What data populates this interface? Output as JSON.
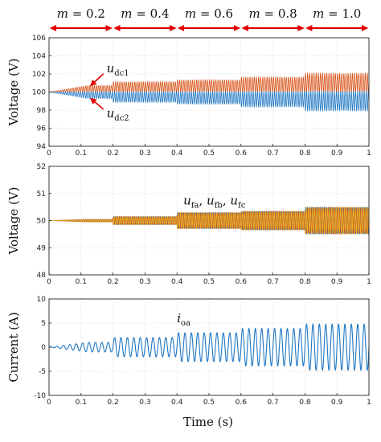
{
  "colors": {
    "blue": "#1f77c4",
    "orange": "#d9541a",
    "yellow": "#f0b21a",
    "red_arrow": "#e00000",
    "axis": "#222222",
    "grid": "#d4d4d4"
  },
  "modulation": {
    "segments": [
      {
        "var": "m",
        "eq": " = ",
        "value": "0.2",
        "t_start": 0.0,
        "t_end": 0.2
      },
      {
        "var": "m",
        "eq": " = ",
        "value": "0.4",
        "t_start": 0.2,
        "t_end": 0.4
      },
      {
        "var": "m",
        "eq": " = ",
        "value": "0.6",
        "t_start": 0.4,
        "t_end": 0.6
      },
      {
        "var": "m",
        "eq": " = ",
        "value": "0.8",
        "t_start": 0.6,
        "t_end": 0.8
      },
      {
        "var": "m",
        "eq": " = ",
        "value": "1.0",
        "t_start": 0.8,
        "t_end": 1.0
      }
    ]
  },
  "xlabel": "Time (s)",
  "chart_data": [
    {
      "type": "line",
      "ylabel": "Voltage (V)",
      "xlim": [
        0,
        1
      ],
      "ylim": [
        94,
        106
      ],
      "yticks": [
        94,
        96,
        98,
        100,
        102,
        104,
        106
      ],
      "xticks": [
        0,
        0.1,
        0.2,
        0.3,
        0.4,
        0.5,
        0.6,
        0.7,
        0.8,
        0.9,
        1
      ],
      "grid": true,
      "annotations": [
        {
          "base": "u",
          "sub": "dc1",
          "x": 0.18,
          "y": 102.2
        },
        {
          "base": "u",
          "sub": "dc2",
          "x": 0.18,
          "y": 97.2
        }
      ],
      "series": [
        {
          "color_key": "orange",
          "center": 100,
          "segment_amplitudes": [
            0.7,
            1.1,
            1.3,
            1.6,
            2.0
          ],
          "phase": 0,
          "cycles_per_second": 150
        },
        {
          "color_key": "blue",
          "center": 100,
          "segment_amplitudes": [
            0.7,
            1.1,
            1.3,
            1.6,
            2.0
          ],
          "phase": 180,
          "cycles_per_second": 150
        }
      ]
    },
    {
      "type": "line",
      "ylabel": "Voltage (V)",
      "xlim": [
        0,
        1
      ],
      "ylim": [
        48,
        52
      ],
      "yticks": [
        48,
        49,
        50,
        51,
        52
      ],
      "xticks": [
        0,
        0.1,
        0.2,
        0.3,
        0.4,
        0.5,
        0.6,
        0.7,
        0.8,
        0.9,
        1
      ],
      "grid": true,
      "annotations": [
        {
          "text_parts": [
            [
              "u",
              "fa"
            ],
            [
              "u",
              "fb"
            ],
            [
              "u",
              "fc"
            ]
          ],
          "separator": ", ",
          "x": 0.42,
          "y": 50.6
        }
      ],
      "series": [
        {
          "color_key": "blue",
          "center": 50,
          "segment_amplitudes": [
            0.05,
            0.15,
            0.3,
            0.35,
            0.5
          ],
          "phase": 0,
          "cycles_per_second": 150
        },
        {
          "color_key": "orange",
          "center": 50,
          "segment_amplitudes": [
            0.05,
            0.15,
            0.3,
            0.35,
            0.5
          ],
          "phase": 120,
          "cycles_per_second": 150
        },
        {
          "color_key": "yellow",
          "center": 50,
          "segment_amplitudes": [
            0.05,
            0.15,
            0.3,
            0.35,
            0.5
          ],
          "phase": 240,
          "cycles_per_second": 150
        }
      ]
    },
    {
      "type": "line",
      "ylabel": "Current (A)",
      "xlim": [
        0,
        1
      ],
      "ylim": [
        -10,
        10
      ],
      "yticks": [
        -10,
        -5,
        0,
        5,
        10
      ],
      "xticks": [
        0,
        0.1,
        0.2,
        0.3,
        0.4,
        0.5,
        0.6,
        0.7,
        0.8,
        0.9,
        1
      ],
      "grid": true,
      "annotations": [
        {
          "base": "i",
          "sub": "oa",
          "x": 0.4,
          "y": 5.2
        }
      ],
      "series": [
        {
          "color_key": "blue",
          "center": 0,
          "segment_amplitudes": [
            1.0,
            2.0,
            3.0,
            3.9,
            4.8
          ],
          "phase": 0,
          "cycles_per_second": 50
        }
      ]
    }
  ]
}
